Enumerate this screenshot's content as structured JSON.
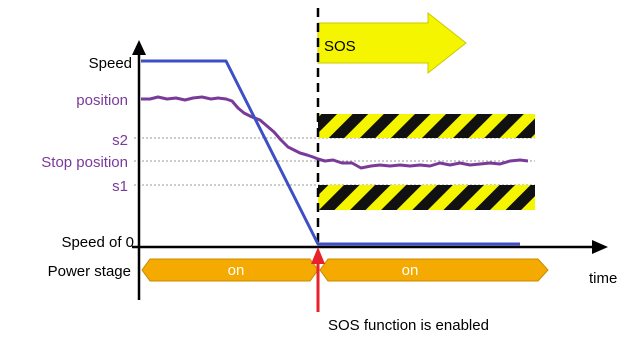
{
  "labels": {
    "speed": "Speed",
    "position": "position",
    "s2": "s2",
    "stop_position": "Stop position",
    "s1": "s1",
    "speed_of_0": "Speed of 0",
    "power_stage": "Power stage",
    "time": "time",
    "sos": "SOS",
    "on_left": "on",
    "on_right": "on",
    "sos_enabled": "SOS function is enabled"
  },
  "colors": {
    "speed_line": "#3d4fc4",
    "position_line": "#7a3a9a",
    "label_purple": "#7a3a9a",
    "power_bar": "#f4aa00",
    "power_bar_border": "#c98a00",
    "sos_arrow": "#f5f500",
    "hatch_yellow": "#f5f500",
    "hatch_black": "#111111",
    "enable_arrow": "#e8222a",
    "axis": "#000000"
  },
  "icons": {
    "sos_arrow": "right-arrow-icon",
    "enable_arrow": "up-arrow-icon"
  }
}
